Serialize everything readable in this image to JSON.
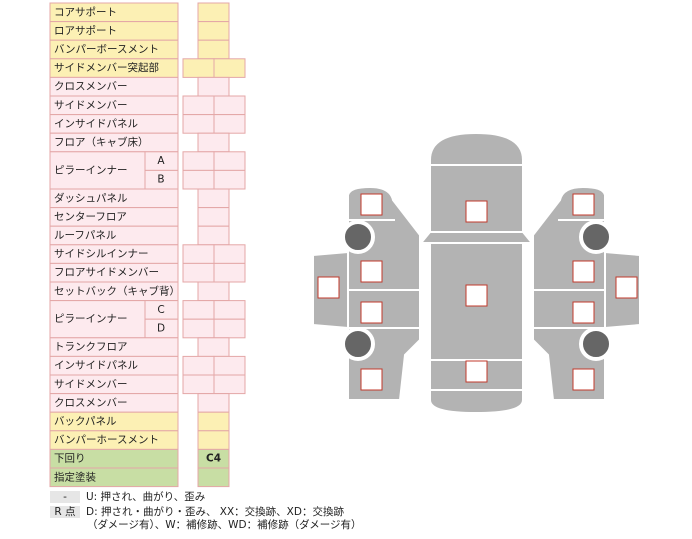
{
  "table": {
    "rows": [
      {
        "label": "コアサポート"
      },
      {
        "label": "ロアサポート"
      },
      {
        "label": "バンパーボースメント"
      },
      {
        "label": "サイドメンバー突起部"
      },
      {
        "label": "クロスメンバー"
      },
      {
        "label": "サイドメンバー"
      },
      {
        "label": "インサイドパネル"
      },
      {
        "label": "フロア（キャブ床）"
      },
      {
        "label": "ピラーインナー",
        "subs": [
          "A",
          "B"
        ]
      },
      {
        "label": "ダッシュパネル"
      },
      {
        "label": "センターフロア"
      },
      {
        "label": "ルーフパネル"
      },
      {
        "label": "サイドシルインナー"
      },
      {
        "label": "フロアサイドメンバー"
      },
      {
        "label": "セットバック（キャブ背）"
      },
      {
        "label": "ピラーインナー",
        "subs": [
          "C",
          "D"
        ]
      },
      {
        "label": "トランクフロア"
      },
      {
        "label": "インサイドパネル"
      },
      {
        "label": "サイドメンバー"
      },
      {
        "label": "クロスメンバー"
      },
      {
        "label": "バックパネル"
      },
      {
        "label": "バンパーホースメント"
      },
      {
        "label": "下回り",
        "mark": "C4"
      },
      {
        "label": "指定塗装"
      }
    ]
  },
  "legend": [
    {
      "key": "-",
      "lines": [
        "U: 押され、曲がり、歪み"
      ]
    },
    {
      "key": "R 点",
      "lines": [
        "D: 押され・曲がり・歪み、 XX：交換跡、XD：交換跡",
        "（ダメージ有）、W：補修跡、WD：補修跡（ダメージ有）"
      ]
    }
  ]
}
